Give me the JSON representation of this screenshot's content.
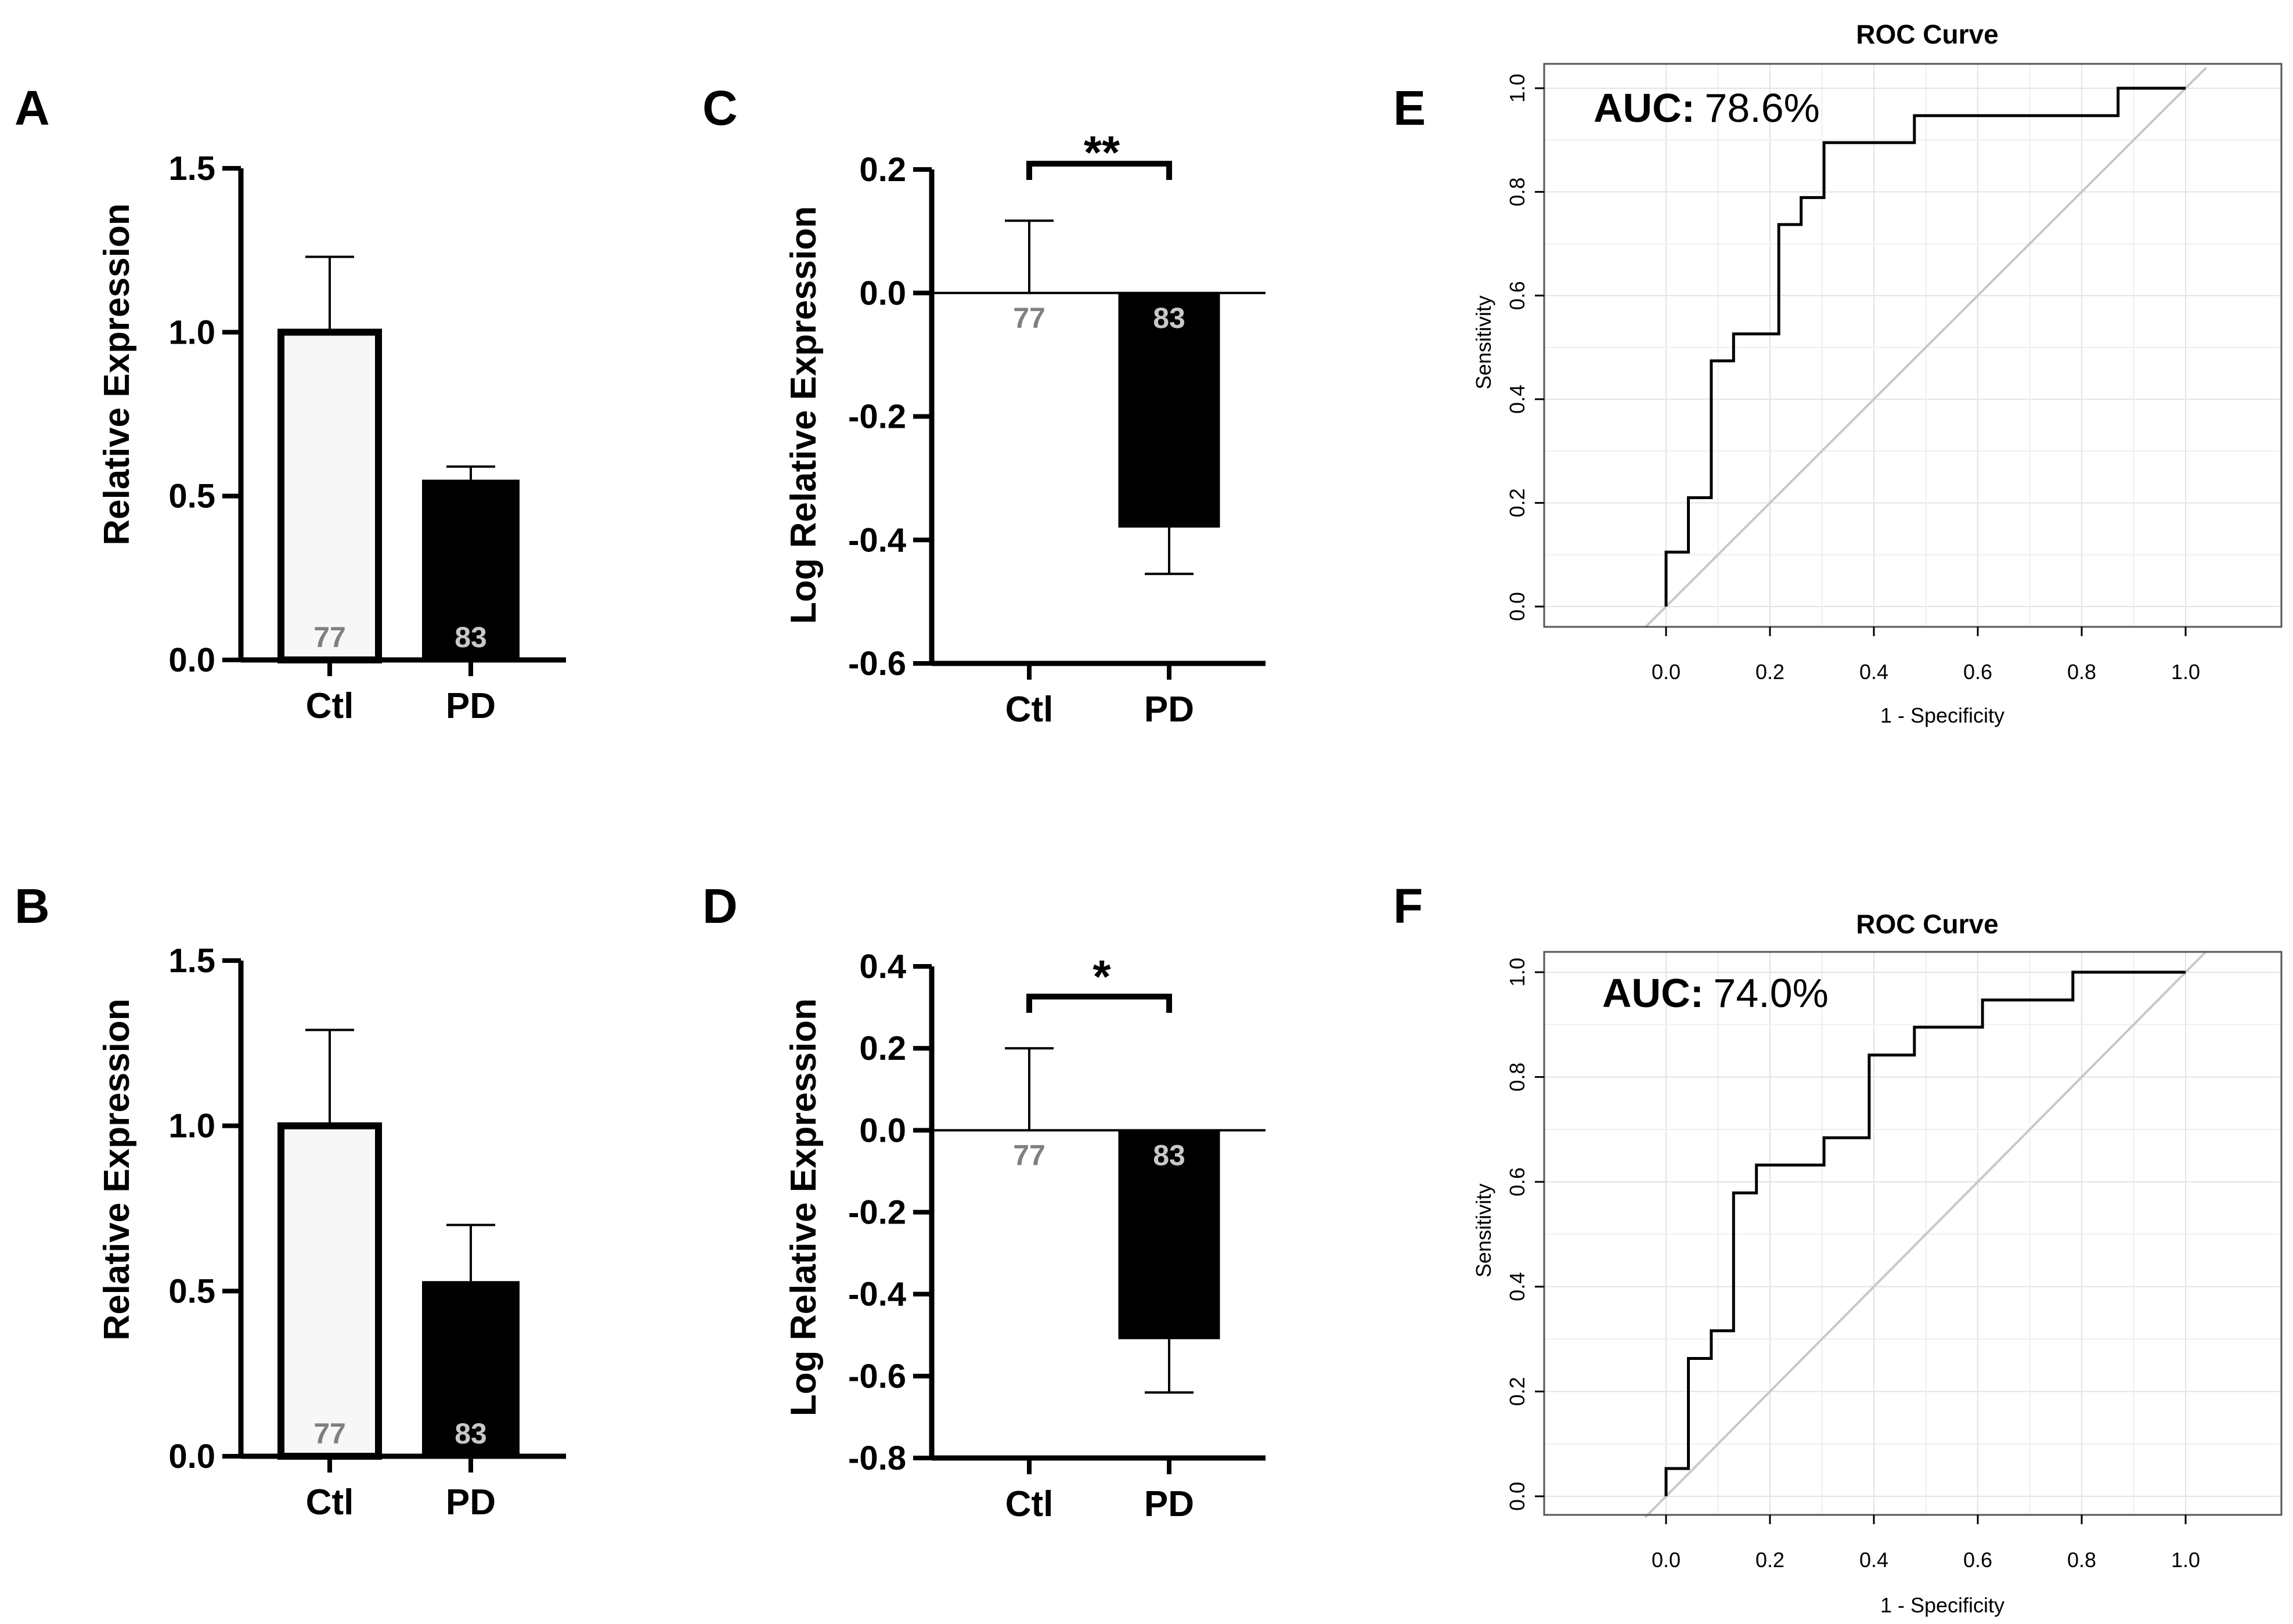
{
  "chart_data": [
    {
      "panel": "A",
      "type": "bar",
      "ylabel": "Relative Expression",
      "xlabel": "",
      "categories": [
        "Ctl",
        "PD"
      ],
      "values": [
        1.0,
        0.55
      ],
      "error_upper": [
        1.23,
        0.59
      ],
      "n_labels": [
        "77",
        "83"
      ],
      "ylim": [
        0,
        1.5
      ],
      "yticks": [
        "0.0",
        "0.5",
        "1.0",
        "1.5"
      ],
      "ytick_values": [
        0,
        0.5,
        1.0,
        1.5
      ],
      "bar_colors": [
        "#f7f7f7",
        "#000000"
      ],
      "n_label_colors": [
        "#808080",
        "#c8c8c8"
      ],
      "significance": ""
    },
    {
      "panel": "B",
      "type": "bar",
      "ylabel": "Relative Expression",
      "xlabel": "",
      "categories": [
        "Ctl",
        "PD"
      ],
      "values": [
        1.0,
        0.53
      ],
      "error_upper": [
        1.29,
        0.7
      ],
      "n_labels": [
        "77",
        "83"
      ],
      "ylim": [
        0,
        1.5
      ],
      "yticks": [
        "0.0",
        "0.5",
        "1.0",
        "1.5"
      ],
      "ytick_values": [
        0,
        0.5,
        1.0,
        1.5
      ],
      "bar_colors": [
        "#f7f7f7",
        "#000000"
      ],
      "n_label_colors": [
        "#808080",
        "#c8c8c8"
      ],
      "significance": ""
    },
    {
      "panel": "C",
      "type": "bar",
      "ylabel": "Log Relative Expression",
      "xlabel": "",
      "categories": [
        "Ctl",
        "PD"
      ],
      "values": [
        0.0,
        -0.38
      ],
      "error_upper": [
        0.117,
        -0.455
      ],
      "n_labels": [
        "77",
        "83"
      ],
      "ylim": [
        -0.6,
        0.2
      ],
      "yticks": [
        "0.2",
        "0.0",
        "-0.2",
        "-0.4",
        "-0.6"
      ],
      "ytick_values": [
        0.2,
        0.0,
        -0.2,
        -0.4,
        -0.6
      ],
      "bar_colors": [
        "#f7f7f7",
        "#000000"
      ],
      "n_label_colors": [
        "#808080",
        "#c8c8c8"
      ],
      "significance": "**"
    },
    {
      "panel": "D",
      "type": "bar",
      "ylabel": "Log Relative Expression",
      "xlabel": "",
      "categories": [
        "Ctl",
        "PD"
      ],
      "values": [
        0.0,
        -0.51
      ],
      "error_upper": [
        0.2,
        -0.64
      ],
      "n_labels": [
        "77",
        "83"
      ],
      "ylim": [
        -0.8,
        0.4
      ],
      "yticks": [
        "0.4",
        "0.2",
        "0.0",
        "-0.2",
        "-0.4",
        "-0.6",
        "-0.8"
      ],
      "ytick_values": [
        0.4,
        0.2,
        0.0,
        -0.2,
        -0.4,
        -0.6,
        -0.8
      ],
      "bar_colors": [
        "#f7f7f7",
        "#000000"
      ],
      "n_label_colors": [
        "#808080",
        "#c8c8c8"
      ],
      "significance": "*"
    },
    {
      "panel": "E",
      "type": "line",
      "title": "ROC Curve",
      "xlabel": "1 - Specificity",
      "ylabel": "Sensitivity",
      "auc_label": "AUC:",
      "auc_value": "78.6%",
      "xlim": [
        0,
        1
      ],
      "ylim": [
        0,
        1
      ],
      "xticks": [
        "0.0",
        "0.2",
        "0.4",
        "0.6",
        "0.8",
        "1.0"
      ],
      "yticks": [
        "0.0",
        "0.2",
        "0.4",
        "0.6",
        "0.8",
        "1.0"
      ],
      "grid": true,
      "diagonal": true,
      "curve_color": "#000000",
      "diagonal_color": "#c8c8c8",
      "x": [
        0,
        0,
        0.043,
        0.043,
        0.087,
        0.087,
        0.13,
        0.13,
        0.217,
        0.217,
        0.26,
        0.26,
        0.304,
        0.304,
        0.478,
        0.478,
        0.87,
        0.87,
        1.0
      ],
      "y": [
        0,
        0.105,
        0.105,
        0.21,
        0.21,
        0.474,
        0.474,
        0.526,
        0.526,
        0.737,
        0.737,
        0.789,
        0.789,
        0.895,
        0.895,
        0.947,
        0.947,
        1.0,
        1.0
      ]
    },
    {
      "panel": "F",
      "type": "line",
      "title": "ROC Curve",
      "xlabel": "1 - Specificity",
      "ylabel": "Sensitivity",
      "auc_label": "AUC:",
      "auc_value": "74.0%",
      "xlim": [
        0,
        1
      ],
      "ylim": [
        0,
        1
      ],
      "xticks": [
        "0.0",
        "0.2",
        "0.4",
        "0.6",
        "0.8",
        "1.0"
      ],
      "yticks": [
        "0.0",
        "0.2",
        "0.4",
        "0.6",
        "0.8",
        "1.0"
      ],
      "grid": true,
      "diagonal": true,
      "curve_color": "#000000",
      "diagonal_color": "#c8c8c8",
      "x": [
        0,
        0,
        0.043,
        0.043,
        0.087,
        0.087,
        0.13,
        0.13,
        0.174,
        0.174,
        0.304,
        0.304,
        0.391,
        0.391,
        0.478,
        0.478,
        0.609,
        0.609,
        0.783,
        0.783,
        1.0
      ],
      "y": [
        0,
        0.053,
        0.053,
        0.263,
        0.263,
        0.316,
        0.316,
        0.579,
        0.579,
        0.632,
        0.632,
        0.684,
        0.684,
        0.842,
        0.842,
        0.895,
        0.895,
        0.947,
        0.947,
        1.0,
        1.0
      ]
    }
  ]
}
